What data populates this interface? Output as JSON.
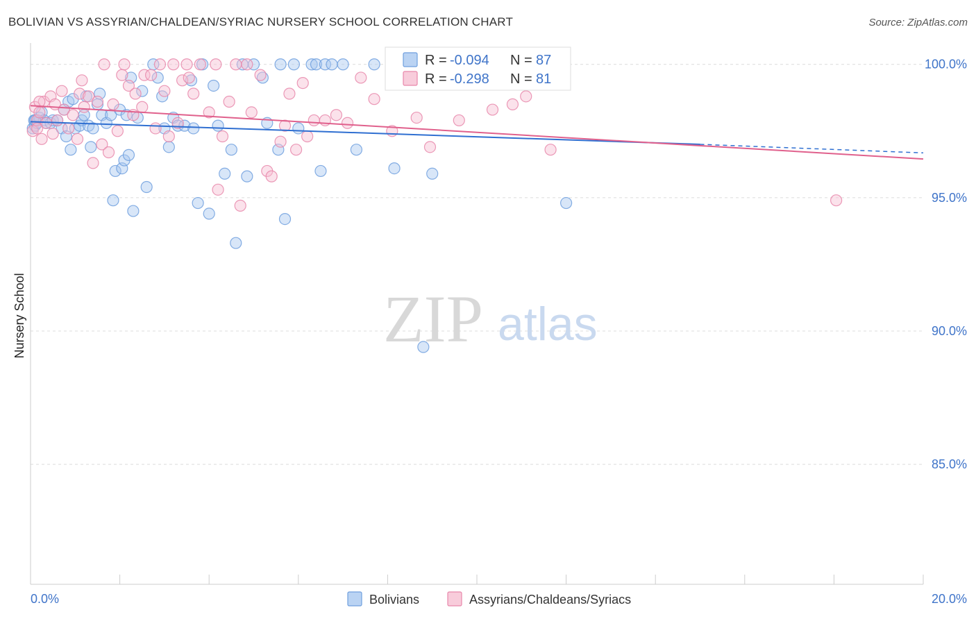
{
  "chart_data": {
    "type": "scatter",
    "title": "BOLIVIAN VS ASSYRIAN/CHALDEAN/SYRIAC NURSERY SCHOOL CORRELATION CHART",
    "source": "Source: ZipAtlas.com",
    "xlabel": "",
    "ylabel": "Nursery School",
    "xlim": [
      0,
      20
    ],
    "ylim": [
      80.5,
      100.8
    ],
    "x_tick_labels": [
      "0.0%",
      "20.0%"
    ],
    "y_ticks": [
      100,
      95,
      90,
      85
    ],
    "y_tick_labels": [
      "100.0%",
      "95.0%",
      "90.0%",
      "85.0%"
    ],
    "watermark": [
      "ZIP",
      "atlas"
    ],
    "stats": {
      "r_label": "R =",
      "n_label": "N =",
      "rows": [
        {
          "r": "-0.094",
          "n": "87"
        },
        {
          "r": "-0.298",
          "n": "81"
        }
      ]
    },
    "series": [
      {
        "name": "Bolivians",
        "color": "#6f9fde",
        "fill": "#a9c8f0",
        "trend": {
          "x0": 0,
          "y0": 97.85,
          "x1": 15,
          "y1": 97.0,
          "dash_x1": 20,
          "dash_y1": 96.68
        },
        "points": [
          [
            0.05,
            97.6
          ],
          [
            0.08,
            97.9
          ],
          [
            0.1,
            97.7
          ],
          [
            0.12,
            97.9
          ],
          [
            0.15,
            97.8
          ],
          [
            0.2,
            98.0
          ],
          [
            0.25,
            98.2
          ],
          [
            0.3,
            97.9
          ],
          [
            0.35,
            97.8
          ],
          [
            0.45,
            97.8
          ],
          [
            0.5,
            97.9
          ],
          [
            0.6,
            97.9
          ],
          [
            0.7,
            97.6
          ],
          [
            0.75,
            98.3
          ],
          [
            0.8,
            97.3
          ],
          [
            0.85,
            98.6
          ],
          [
            0.9,
            96.8
          ],
          [
            0.95,
            98.7
          ],
          [
            1.0,
            97.6
          ],
          [
            1.1,
            97.7
          ],
          [
            1.15,
            97.9
          ],
          [
            1.2,
            98.1
          ],
          [
            1.25,
            98.8
          ],
          [
            1.3,
            97.7
          ],
          [
            1.35,
            96.9
          ],
          [
            1.4,
            97.6
          ],
          [
            1.5,
            98.5
          ],
          [
            1.55,
            98.9
          ],
          [
            1.6,
            98.1
          ],
          [
            1.7,
            97.8
          ],
          [
            1.8,
            98.1
          ],
          [
            1.85,
            94.9
          ],
          [
            1.9,
            96.0
          ],
          [
            2.0,
            98.3
          ],
          [
            2.05,
            96.1
          ],
          [
            2.1,
            96.4
          ],
          [
            2.15,
            98.1
          ],
          [
            2.2,
            96.6
          ],
          [
            2.25,
            99.5
          ],
          [
            2.3,
            94.5
          ],
          [
            2.4,
            98.0
          ],
          [
            2.5,
            99.0
          ],
          [
            2.6,
            95.4
          ],
          [
            2.75,
            100.0
          ],
          [
            2.85,
            99.5
          ],
          [
            2.95,
            98.8
          ],
          [
            3.0,
            97.6
          ],
          [
            3.1,
            96.9
          ],
          [
            3.2,
            98.0
          ],
          [
            3.3,
            97.7
          ],
          [
            3.45,
            97.7
          ],
          [
            3.6,
            99.4
          ],
          [
            3.65,
            97.6
          ],
          [
            3.75,
            94.8
          ],
          [
            3.85,
            100.0
          ],
          [
            4.0,
            94.4
          ],
          [
            4.1,
            99.2
          ],
          [
            4.2,
            97.7
          ],
          [
            4.35,
            95.9
          ],
          [
            4.5,
            96.8
          ],
          [
            4.6,
            93.3
          ],
          [
            4.75,
            100.0
          ],
          [
            4.85,
            95.8
          ],
          [
            5.0,
            100.0
          ],
          [
            5.2,
            99.5
          ],
          [
            5.3,
            97.8
          ],
          [
            5.55,
            96.8
          ],
          [
            5.6,
            100.0
          ],
          [
            5.7,
            94.2
          ],
          [
            5.9,
            100.0
          ],
          [
            6.0,
            97.6
          ],
          [
            6.3,
            100.0
          ],
          [
            6.4,
            100.0
          ],
          [
            6.5,
            96.0
          ],
          [
            6.6,
            100.0
          ],
          [
            6.75,
            100.0
          ],
          [
            7.0,
            100.0
          ],
          [
            7.3,
            96.8
          ],
          [
            7.7,
            100.0
          ],
          [
            8.15,
            96.1
          ],
          [
            8.8,
            89.4
          ],
          [
            9.0,
            95.9
          ],
          [
            9.6,
            100.0
          ],
          [
            10.2,
            100.0
          ],
          [
            10.5,
            100.0
          ],
          [
            12.0,
            94.8
          ],
          [
            0.1,
            97.9
          ]
        ]
      },
      {
        "name": "Assyrians/Chaldeans/Syriacs",
        "color": "#e887aa",
        "fill": "#f6bfd2",
        "trend": {
          "x0": 0,
          "y0": 98.45,
          "x1": 20,
          "y1": 96.45
        },
        "points": [
          [
            0.05,
            97.5
          ],
          [
            0.1,
            98.4
          ],
          [
            0.15,
            97.9
          ],
          [
            0.2,
            98.2
          ],
          [
            0.25,
            97.2
          ],
          [
            0.3,
            98.6
          ],
          [
            0.35,
            97.8
          ],
          [
            0.45,
            98.8
          ],
          [
            0.5,
            97.4
          ],
          [
            0.55,
            98.5
          ],
          [
            0.6,
            97.9
          ],
          [
            0.7,
            99.0
          ],
          [
            0.75,
            98.3
          ],
          [
            0.85,
            97.6
          ],
          [
            0.95,
            98.1
          ],
          [
            1.05,
            97.2
          ],
          [
            1.1,
            98.9
          ],
          [
            1.15,
            99.4
          ],
          [
            1.2,
            98.4
          ],
          [
            1.3,
            98.8
          ],
          [
            1.4,
            96.3
          ],
          [
            1.5,
            98.6
          ],
          [
            1.6,
            97.0
          ],
          [
            1.65,
            100.0
          ],
          [
            1.75,
            96.7
          ],
          [
            1.85,
            98.5
          ],
          [
            1.95,
            97.5
          ],
          [
            2.05,
            99.6
          ],
          [
            2.1,
            100.0
          ],
          [
            2.2,
            99.2
          ],
          [
            2.3,
            98.1
          ],
          [
            2.35,
            98.9
          ],
          [
            2.5,
            98.4
          ],
          [
            2.55,
            99.6
          ],
          [
            2.7,
            99.6
          ],
          [
            2.8,
            97.6
          ],
          [
            2.9,
            100.0
          ],
          [
            3.0,
            99.0
          ],
          [
            3.1,
            97.3
          ],
          [
            3.2,
            100.0
          ],
          [
            3.3,
            97.8
          ],
          [
            3.4,
            99.4
          ],
          [
            3.5,
            100.0
          ],
          [
            3.55,
            99.5
          ],
          [
            3.65,
            98.9
          ],
          [
            3.8,
            100.0
          ],
          [
            4.0,
            98.2
          ],
          [
            4.15,
            100.0
          ],
          [
            4.2,
            95.3
          ],
          [
            4.3,
            97.3
          ],
          [
            4.45,
            98.6
          ],
          [
            4.6,
            100.0
          ],
          [
            4.7,
            94.7
          ],
          [
            4.85,
            100.0
          ],
          [
            4.95,
            98.2
          ],
          [
            5.15,
            99.6
          ],
          [
            5.3,
            96.0
          ],
          [
            5.4,
            95.8
          ],
          [
            5.6,
            97.1
          ],
          [
            5.7,
            97.7
          ],
          [
            5.8,
            98.9
          ],
          [
            5.95,
            96.8
          ],
          [
            6.1,
            99.3
          ],
          [
            6.2,
            97.3
          ],
          [
            6.35,
            97.9
          ],
          [
            6.6,
            97.9
          ],
          [
            6.85,
            98.1
          ],
          [
            7.1,
            97.8
          ],
          [
            7.4,
            99.5
          ],
          [
            7.7,
            98.7
          ],
          [
            8.1,
            97.5
          ],
          [
            8.65,
            98.0
          ],
          [
            8.95,
            96.9
          ],
          [
            9.6,
            97.9
          ],
          [
            10.35,
            98.3
          ],
          [
            10.8,
            98.5
          ],
          [
            11.1,
            98.8
          ],
          [
            11.65,
            96.8
          ],
          [
            18.05,
            94.9
          ],
          [
            0.15,
            97.6
          ],
          [
            0.2,
            98.6
          ]
        ]
      }
    ]
  }
}
